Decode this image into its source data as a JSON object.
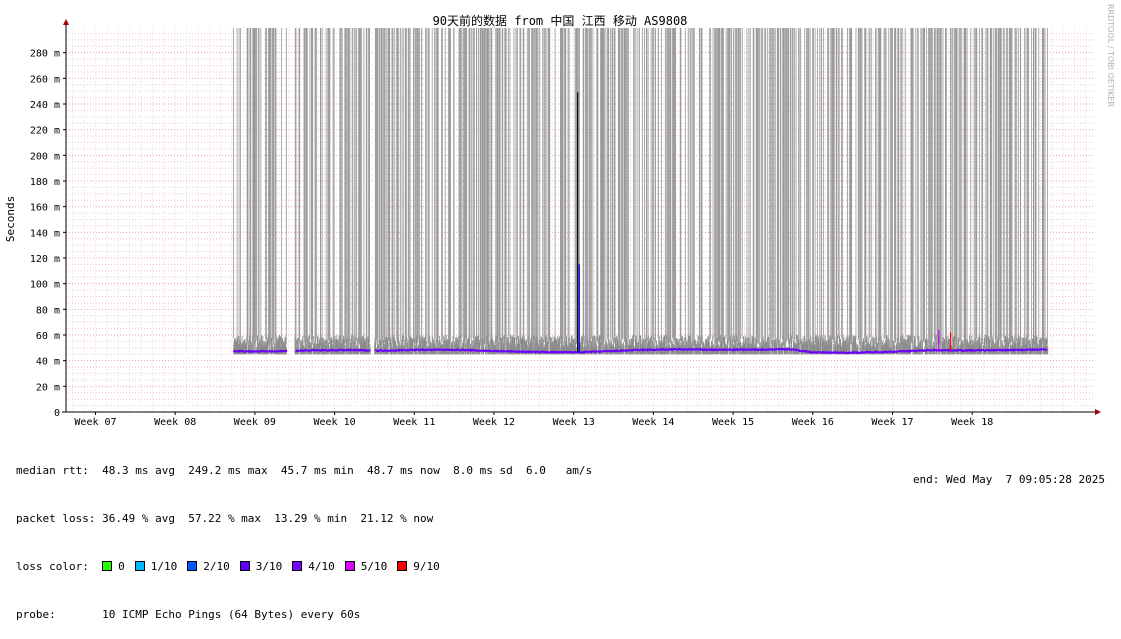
{
  "chart_data": {
    "type": "line",
    "title": "90天前的数据 from 中国 江西 移动 AS9808",
    "ylabel": "Seconds",
    "ylim": [
      0,
      300
    ],
    "y_unit": "ms",
    "y_ticks": [
      "0",
      "20 m",
      "40 m",
      "60 m",
      "80 m",
      "100 m",
      "120 m",
      "140 m",
      "160 m",
      "180 m",
      "200 m",
      "220 m",
      "240 m",
      "260 m",
      "280 m"
    ],
    "x_ticks": [
      "Week 07",
      "Week 08",
      "Week 09",
      "Week 10",
      "Week 11",
      "Week 12",
      "Week 13",
      "Week 14",
      "Week 15",
      "Week 16",
      "Week 17",
      "Week 18"
    ],
    "watermark": "RRDTOOL / TOBI OETIKER",
    "grid": true,
    "series": [
      {
        "name": "median rtt",
        "color": "#6a00ff",
        "x_week": [
          8.73,
          9.0,
          9.4,
          9.7,
          10.2,
          10.6,
          11.0,
          11.5,
          12.0,
          12.5,
          13.0,
          13.3,
          13.8,
          14.3,
          14.8,
          15.3,
          15.7,
          16.0,
          16.5,
          17.0,
          17.5,
          18.0,
          18.5,
          18.95
        ],
        "values": [
          47.5,
          47.2,
          47.5,
          48.0,
          48.2,
          47.8,
          48.4,
          48.5,
          47.5,
          46.8,
          46.5,
          47.0,
          48.3,
          48.8,
          48.5,
          48.6,
          49.0,
          46.5,
          46.2,
          47.0,
          48.2,
          48.0,
          48.3,
          48.7
        ]
      }
    ],
    "gaps_week": [
      [
        9.4,
        9.5
      ],
      [
        10.45,
        10.5
      ]
    ],
    "spikes": [
      {
        "x_week": 13.05,
        "value": 249.2,
        "color": "#000000"
      },
      {
        "x_week": 13.07,
        "value": 115,
        "color": "#0000ff"
      },
      {
        "x_week": 17.58,
        "value": 64,
        "color": "#cc00ff"
      },
      {
        "x_week": 17.73,
        "value": 62,
        "color": "#ff0000"
      }
    ]
  },
  "stats": {
    "median_rtt_label": "median rtt:",
    "median_rtt_text": "48.3 ms avg  249.2 ms max  45.7 ms min  48.7 ms now  8.0 ms sd  6.0   am/s",
    "packet_loss_label": "packet loss:",
    "packet_loss_text": "36.49 % avg  57.22 % max  13.29 % min  21.12 % now",
    "loss_color_label": "loss color:",
    "loss_legend": [
      {
        "label": "0",
        "color": "#26ff00"
      },
      {
        "label": "1/10",
        "color": "#00b8ff"
      },
      {
        "label": "2/10",
        "color": "#0059ff"
      },
      {
        "label": "3/10",
        "color": "#5e00ff"
      },
      {
        "label": "4/10",
        "color": "#7e00ff"
      },
      {
        "label": "5/10",
        "color": "#dd00ff"
      },
      {
        "label": "9/10",
        "color": "#ff0000"
      }
    ],
    "probe_label": "probe:",
    "probe_text": "10 ICMP Echo Pings (64 Bytes) every 60s",
    "end_text": "end: Wed May  7 09:05:28 2025"
  }
}
